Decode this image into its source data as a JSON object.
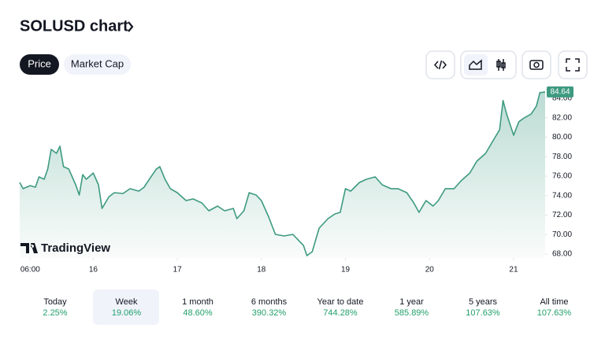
{
  "header": {
    "title": "SOLUSD chart"
  },
  "tabs": [
    "Price",
    "Market Cap"
  ],
  "logo": "TradingView",
  "chart_data": {
    "type": "area",
    "color": "#3d9a80",
    "x": [
      -3,
      -2,
      0,
      1.5,
      2.5,
      4,
      5,
      6,
      7.5,
      8.5,
      9.5,
      11,
      13,
      14,
      15,
      16,
      18,
      19.5,
      20.5,
      22.5,
      24,
      26.5,
      28.5,
      31,
      32.5,
      34,
      36,
      37,
      38.5,
      40,
      42,
      44.5,
      46.5,
      49,
      51,
      53.5,
      55.5,
      58,
      59,
      61,
      62.5,
      64.5,
      66,
      68,
      70,
      72.5,
      75,
      76.5,
      78,
      79,
      80.5,
      81.5,
      82.5,
      85,
      87,
      88.5,
      90,
      91.5,
      94,
      96,
      98.5,
      100.5,
      103,
      105,
      107.5,
      109.5,
      111,
      113,
      115,
      116.5,
      118.5,
      121,
      123,
      125.5,
      127.5,
      130,
      132,
      134,
      135,
      136,
      138,
      139.5,
      141,
      143,
      144.5,
      145.5,
      147
    ],
    "values": [
      75.35,
      74.71,
      75.03,
      74.87,
      75.92,
      75.68,
      76.73,
      78.75,
      78.34,
      79.07,
      76.97,
      76.73,
      75.11,
      74.06,
      76.16,
      75.68,
      76.32,
      75.11,
      72.69,
      73.9,
      74.3,
      74.22,
      74.71,
      74.46,
      74.87,
      75.68,
      76.73,
      76.97,
      75.68,
      74.71,
      74.3,
      73.49,
      73.66,
      73.25,
      72.44,
      72.93,
      72.44,
      72.69,
      71.64,
      72.44,
      74.3,
      74.06,
      73.49,
      71.88,
      70.02,
      69.86,
      70.02,
      69.45,
      68.89,
      67.84,
      68.24,
      69.45,
      70.67,
      71.64,
      72.12,
      72.28,
      74.71,
      74.46,
      75.35,
      75.68,
      75.92,
      75.11,
      74.71,
      74.71,
      74.3,
      73.25,
      72.28,
      73.49,
      72.93,
      73.49,
      74.71,
      74.71,
      75.52,
      76.32,
      77.54,
      78.34,
      79.56,
      80.77,
      83.76,
      82.38,
      80.2,
      81.58,
      81.98,
      82.38,
      83.19,
      84.57,
      84.64
    ],
    "xlim": [
      -3,
      147
    ],
    "xticks": [
      {
        "value": 0,
        "label": "06:00"
      },
      {
        "value": 18,
        "label": "16"
      },
      {
        "value": 42,
        "label": "17"
      },
      {
        "value": 66,
        "label": "18"
      },
      {
        "value": 90,
        "label": "19"
      },
      {
        "value": 114,
        "label": "20"
      },
      {
        "value": 138,
        "label": "21"
      }
    ],
    "ylim": [
      67.6,
      85.2
    ],
    "yticks": [
      {
        "value": 68,
        "label": "68.00"
      },
      {
        "value": 70,
        "label": "70.00"
      },
      {
        "value": 72,
        "label": "72.00"
      },
      {
        "value": 74,
        "label": "74.00"
      },
      {
        "value": 76,
        "label": "76.00"
      },
      {
        "value": 78,
        "label": "78.00"
      },
      {
        "value": 80,
        "label": "80.00"
      },
      {
        "value": 82,
        "label": "82.00"
      },
      {
        "value": 84,
        "label": "84.00"
      }
    ]
  },
  "periods": [
    {
      "label": "Today",
      "change": "2.25%"
    },
    {
      "label": "Week",
      "change": "19.06%"
    },
    {
      "label": "1 month",
      "change": "48.60%"
    },
    {
      "label": "6 months",
      "change": "390.32%"
    },
    {
      "label": "Year to date",
      "change": "744.28%"
    },
    {
      "label": "1 year",
      "change": "585.89%"
    },
    {
      "label": "5 years",
      "change": "107.63%"
    },
    {
      "label": "All time",
      "change": "107.63%"
    }
  ]
}
